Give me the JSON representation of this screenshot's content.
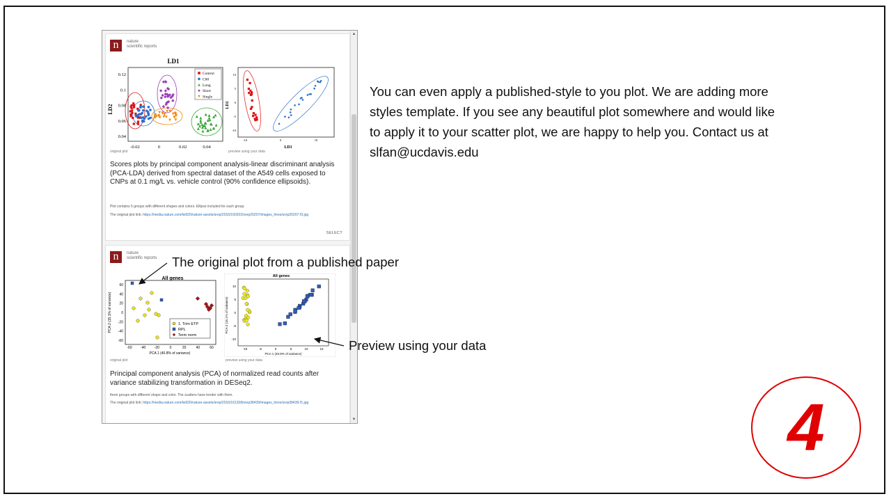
{
  "panel": {
    "cards": [
      {
        "brand_name": "nature",
        "brand_sub": "scientific reports",
        "original_caption": "original plot",
        "preview_caption": "preview using your data",
        "description": "Scores plots by principal component analysis-linear discriminant analysis (PCA-LDA) derived from spectral dataset of the A549 cells exposed to CNPs at 0.1 mg/L vs. vehicle control (90% confidence ellipsoids).",
        "note": "Plot contains 5 groups with different shapes and colors. Ellipse included for each group.",
        "link_prefix": "The original plot link:",
        "link_url": "https://media.nature.com/lw926/nature-assets/srep/2016/160202/srep20207/images_hires/srep20207-f3.jpg",
        "select_label": "SELECT",
        "original_plot": {
          "title": "LD1",
          "ylabel": "LD2",
          "x_ticks": [
            "-0.02",
            "0",
            "0.02",
            "0.04"
          ],
          "y_ticks": [
            "0.12",
            "0.1",
            "0.08",
            "0.06",
            "0.04"
          ],
          "legend": [
            {
              "label": "Control",
              "color": "#e01010",
              "shape": "square"
            },
            {
              "label": "C60",
              "color": "#2a6fd0",
              "shape": "circle"
            },
            {
              "label": "Long",
              "color": "#3aa83a",
              "shape": "triangle"
            },
            {
              "label": "Short",
              "color": "#9a3fb8",
              "shape": "diamond"
            },
            {
              "label": "Single",
              "color": "#f08a10",
              "shape": "triangle-down"
            }
          ]
        },
        "preview_plot": {
          "xlabel": "LD1",
          "ylabel": "LD2",
          "x_ticks": [
            "-10",
            "0",
            "10"
          ],
          "y_ticks": [
            "10",
            "5",
            "0",
            "-5",
            "-10"
          ]
        }
      },
      {
        "brand_name": "nature",
        "brand_sub": "scientific reports",
        "original_caption": "original plot",
        "preview_caption": "preview using your data",
        "description": "Principal component analysis (PCA) of normalized read counts after variance stabilizing transformation in DESeq2.",
        "note": "three groups with different shape and color. The scatters have border with them.",
        "link_prefix": "The original plot link:",
        "link_url": "https://media.nature.com/lw926/nature-assets/srep/2016/161208/srep38439/images_hires/srep38439-f1.jpg",
        "original_plot": {
          "title": "All genes",
          "xlabel": "PCA 1 (40.8% of variance)",
          "ylabel": "PCA 2 (15.1% of variance)",
          "x_ticks": [
            "-60",
            "-40",
            "-20",
            "0",
            "20",
            "40",
            "60"
          ],
          "y_ticks": [
            "60",
            "40",
            "20",
            "0",
            "-20",
            "-40",
            "-60"
          ],
          "legend": [
            {
              "label": "1. Trim ETP",
              "color": "#e8e020",
              "shape": "circle"
            },
            {
              "label": "RPL",
              "color": "#2d5fc0",
              "shape": "square"
            },
            {
              "label": "Term norm",
              "color": "#a01818",
              "shape": "diamond"
            }
          ]
        },
        "preview_plot": {
          "title": "All genes",
          "xlabel": "PCA 1 (40.8% of variance)",
          "ylabel": "PCA 2 (15.1% of variance)",
          "x_ticks": [
            "-10",
            "-5",
            "0",
            "5",
            "10",
            "15"
          ],
          "y_ticks": [
            "10",
            "5",
            "0",
            "-5",
            "-10"
          ]
        }
      }
    ]
  },
  "blurb": "You can even apply a published-style to you plot. We are adding more styles template. If you see any beautiful plot somewhere and would like to apply it to your scatter plot, we are happy to help you. Contact us at slfan@ucdavis.edu",
  "annotations": {
    "original": "The original plot from a published paper",
    "preview": "Preview using your data"
  },
  "step_number": "4",
  "colors": {
    "brand": "#8b1a1a",
    "accent_red": "#e00000",
    "link": "#2a6fb0"
  }
}
